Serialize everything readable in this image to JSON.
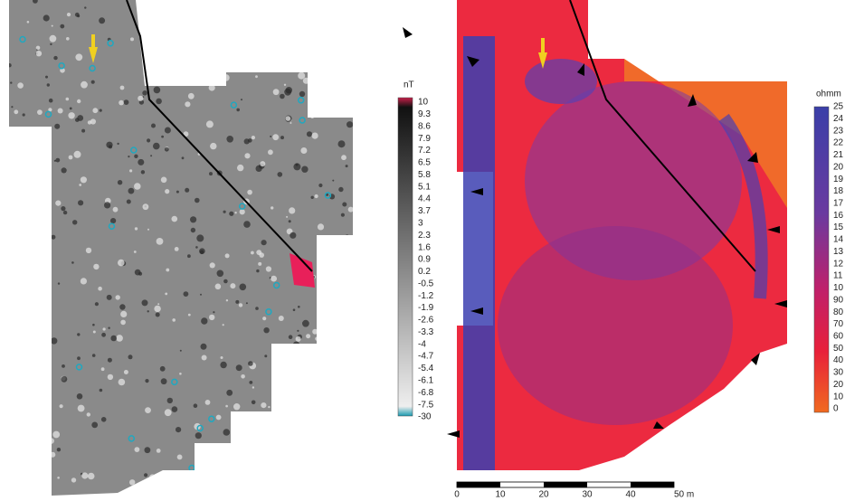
{
  "left_legend": {
    "unit": "nT",
    "labels": [
      "10",
      "9.3",
      "8.6",
      "7.9",
      "7.2",
      "6.5",
      "5.8",
      "5.1",
      "4.4",
      "3.7",
      "3",
      "2.3",
      "1.6",
      "0.9",
      "0.2",
      "-0.5",
      "-1.2",
      "-1.9",
      "-2.6",
      "-3.3",
      "-4",
      "-4.7",
      "-5.4",
      "-6.1",
      "-6.8",
      "-7.5",
      "-30"
    ]
  },
  "right_legend": {
    "unit": "ohmm",
    "labels": [
      "25",
      "24",
      "23",
      "22",
      "21",
      "20",
      "19",
      "18",
      "17",
      "16",
      "15",
      "14",
      "13",
      "12",
      "11",
      "10",
      "90",
      "80",
      "70",
      "60",
      "50",
      "40",
      "30",
      "20",
      "10",
      "0"
    ]
  },
  "scale_bar": {
    "labels": [
      "0",
      "10",
      "20",
      "30",
      "40",
      "50 m"
    ]
  }
}
